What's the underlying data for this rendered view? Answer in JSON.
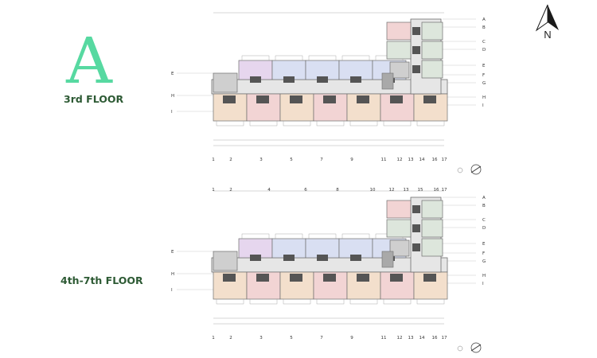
{
  "building_letter": "A",
  "colors": {
    "accent": "#57d9a1",
    "floor_label": "#2d5a34",
    "unit_pink": "#f2d4d4",
    "unit_blue": "#d9dff2",
    "unit_purple": "#e6d6ee",
    "unit_peach": "#f3dfcc",
    "unit_sage": "#dde6dc",
    "corridor": "#e6e6e6",
    "core_dark": "#555555",
    "wall": "#6e6e6e"
  },
  "north_label": "N",
  "plans": [
    {
      "floor_label": "3rd FLOOR"
    },
    {
      "floor_label": "4th-7th FLOOR"
    }
  ],
  "column_grid_bottom": [
    "1",
    "2",
    "3",
    "5",
    "7",
    "9",
    "11",
    "12",
    "13",
    "14",
    "16",
    "17"
  ],
  "column_grid_top_second": [
    "1",
    "2",
    "4",
    "6",
    "8",
    "10",
    "12",
    "13",
    "15",
    "16",
    "17"
  ],
  "row_grid_right": [
    "A",
    "B",
    "C",
    "D",
    "E",
    "F",
    "G",
    "H",
    "I"
  ],
  "row_grid_left": [
    "E",
    "H",
    "I"
  ]
}
